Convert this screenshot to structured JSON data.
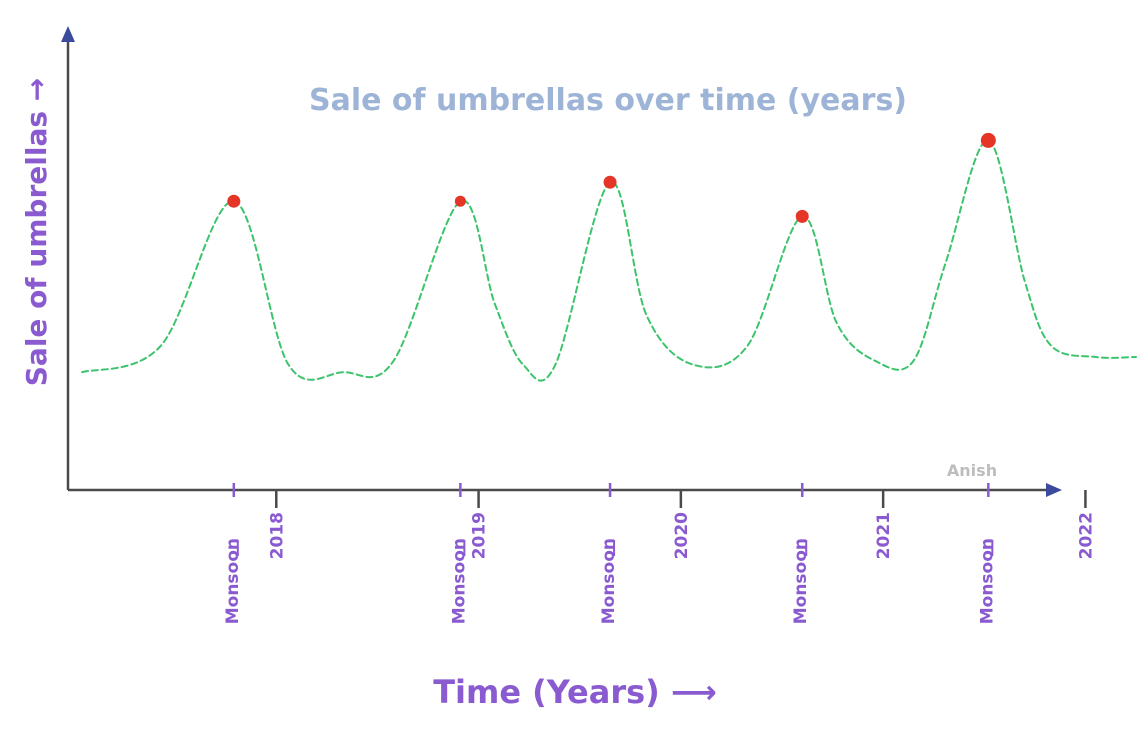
{
  "chart_data": {
    "type": "line",
    "title": "Sale of umbrellas over time (years)",
    "xlabel": "Time (Years) ⟶",
    "ylabel": "Sale of umbrellas →",
    "x_ticks": [
      "2018",
      "2019",
      "2020",
      "2021",
      "2022"
    ],
    "minor_ticks": [
      "Monsoon",
      "Monsoon",
      "Monsoon",
      "Monsoon",
      "Monsoon"
    ],
    "x_range": [
      2017.0,
      2022.25
    ],
    "y_range": [
      0,
      100
    ],
    "y_ticks_shown": false,
    "grid": false,
    "legend": "none",
    "series": [
      {
        "style": "dashed",
        "color": "#3cc46c",
        "points": [
          {
            "x": 2017.04,
            "y": 31
          },
          {
            "x": 2017.43,
            "y": 38
          },
          {
            "x": 2017.79,
            "y": 76
          },
          {
            "x": 2018.06,
            "y": 33
          },
          {
            "x": 2018.33,
            "y": 31
          },
          {
            "x": 2018.58,
            "y": 34
          },
          {
            "x": 2018.91,
            "y": 76
          },
          {
            "x": 2019.08,
            "y": 49
          },
          {
            "x": 2019.22,
            "y": 33
          },
          {
            "x": 2019.38,
            "y": 33
          },
          {
            "x": 2019.65,
            "y": 81
          },
          {
            "x": 2019.83,
            "y": 46
          },
          {
            "x": 2020.06,
            "y": 33
          },
          {
            "x": 2020.33,
            "y": 38
          },
          {
            "x": 2020.6,
            "y": 72
          },
          {
            "x": 2020.77,
            "y": 44
          },
          {
            "x": 2020.96,
            "y": 34
          },
          {
            "x": 2021.15,
            "y": 34
          },
          {
            "x": 2021.31,
            "y": 60
          },
          {
            "x": 2021.52,
            "y": 92
          },
          {
            "x": 2021.7,
            "y": 55
          },
          {
            "x": 2021.83,
            "y": 38
          },
          {
            "x": 2022.05,
            "y": 35
          },
          {
            "x": 2022.25,
            "y": 35
          }
        ]
      }
    ],
    "highlight_points": [
      {
        "x": 2017.79,
        "y": 76,
        "label": "Monsoon"
      },
      {
        "x": 2018.91,
        "y": 76,
        "label": "Monsoon"
      },
      {
        "x": 2019.65,
        "y": 81,
        "label": "Monsoon"
      },
      {
        "x": 2020.6,
        "y": 72,
        "label": "Monsoon"
      },
      {
        "x": 2021.52,
        "y": 92,
        "label": "Monsoon"
      }
    ],
    "colors": {
      "axis": "#4a4a4a",
      "arrow": "#3b4a9c",
      "title": "#9db4d6",
      "labels": "#8a5ad0",
      "line": "#3cc46c",
      "points": "#e53527",
      "signature": "#bdbdbd"
    }
  },
  "signature": "Anish"
}
